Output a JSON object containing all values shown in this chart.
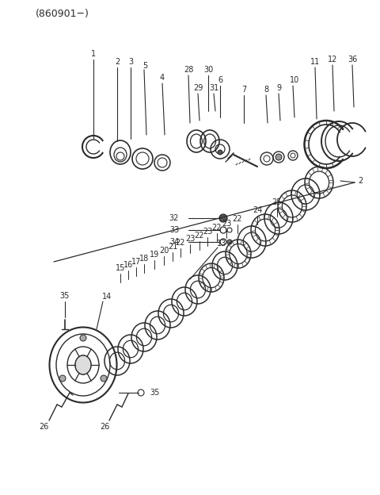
{
  "title": "(860901−)",
  "bg_color": "#ffffff",
  "lc": "#2a2a2a",
  "figsize": [
    4.8,
    6.24
  ],
  "dpi": 100,
  "xlim": [
    0,
    480
  ],
  "ylim": [
    0,
    624
  ]
}
